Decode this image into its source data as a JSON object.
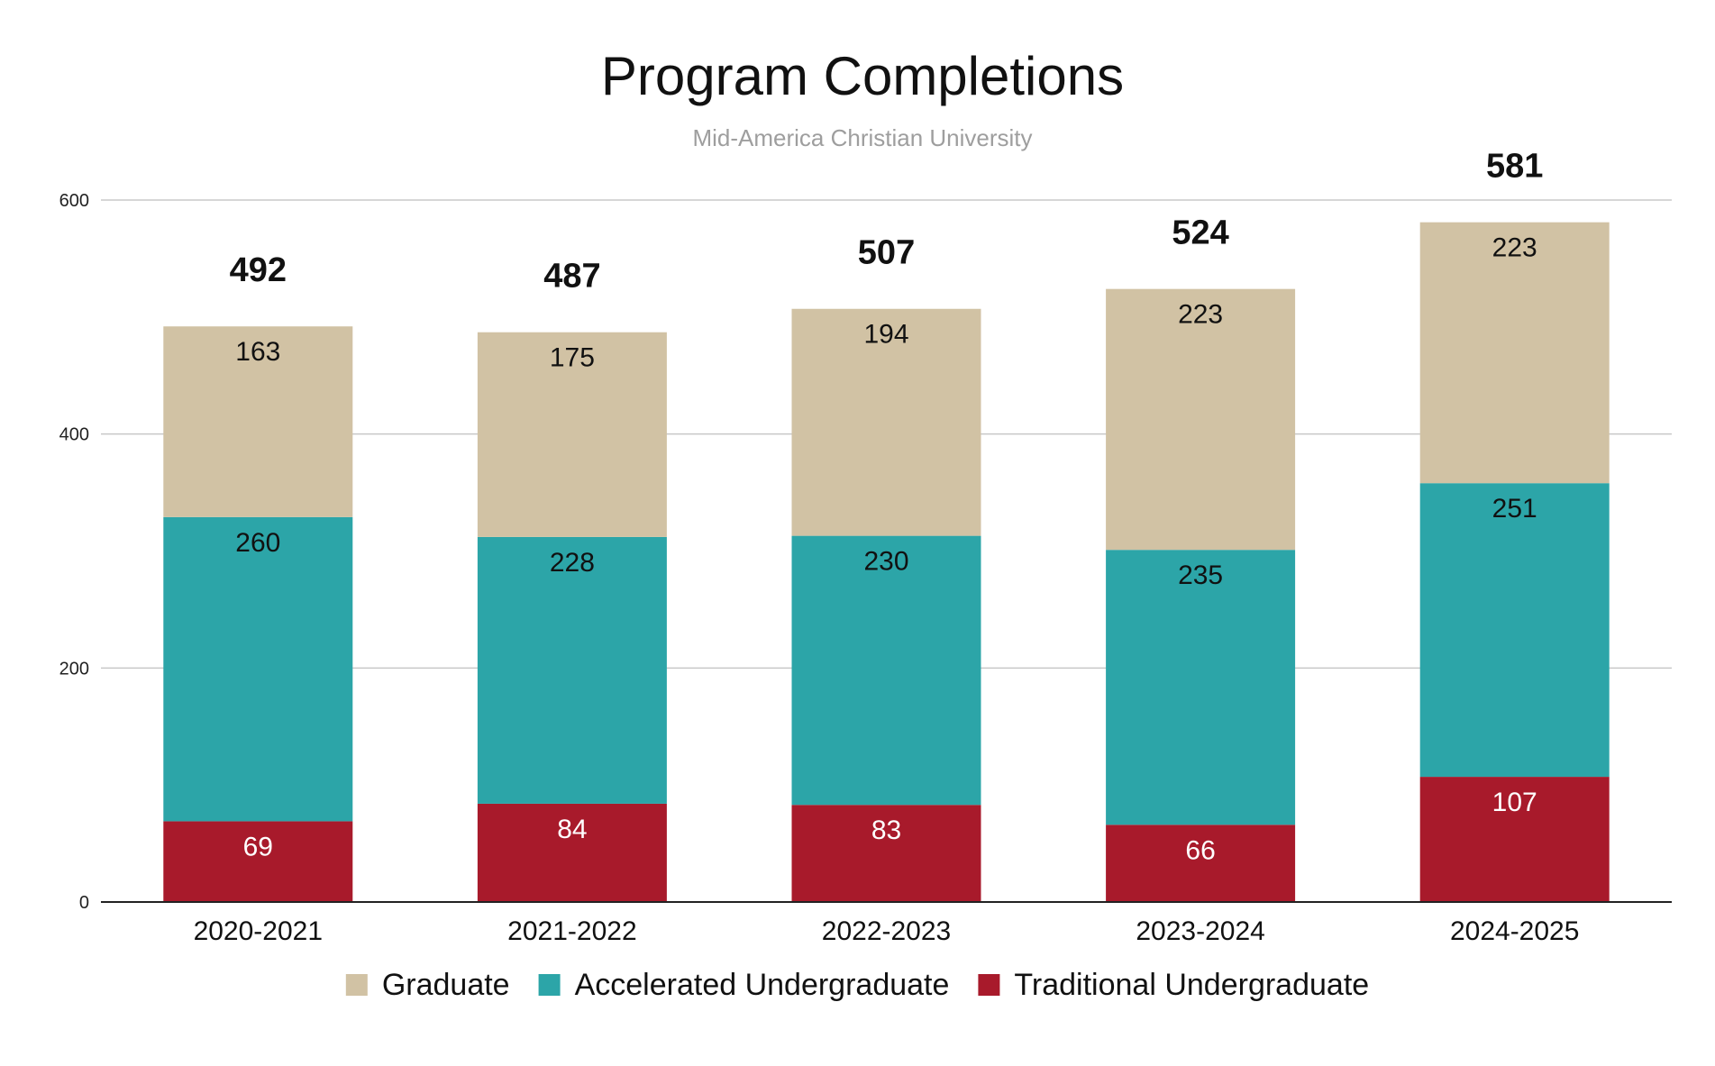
{
  "chart_data": {
    "type": "bar",
    "stacked": true,
    "title": "Program Completions",
    "subtitle": "Mid-America Christian University",
    "xlabel": "",
    "ylabel": "",
    "ylim": [
      0,
      600
    ],
    "yticks": [
      0,
      200,
      400,
      600
    ],
    "grid": true,
    "legend_position": "bottom",
    "categories": [
      "2020-2021",
      "2021-2022",
      "2022-2023",
      "2023-2024",
      "2024-2025"
    ],
    "series": [
      {
        "name": "Traditional Undergraduate",
        "color": "#A81A2B",
        "label_color": "#FFFFFF",
        "values": [
          69,
          84,
          83,
          66,
          107
        ]
      },
      {
        "name": "Accelerated Undergraduate",
        "color": "#2CA5A8",
        "label_color": "#111111",
        "values": [
          260,
          228,
          230,
          235,
          251
        ]
      },
      {
        "name": "Graduate",
        "color": "#D1C2A4",
        "label_color": "#111111",
        "values": [
          163,
          175,
          194,
          223,
          223
        ]
      }
    ],
    "totals": [
      492,
      487,
      507,
      524,
      581
    ],
    "legend_order": [
      "Graduate",
      "Accelerated Undergraduate",
      "Traditional Undergraduate"
    ]
  }
}
